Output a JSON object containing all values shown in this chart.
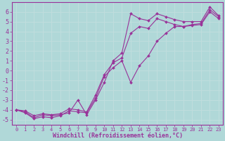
{
  "xlabel": "Windchill (Refroidissement éolien,°C)",
  "background_color": "#b0d8d8",
  "grid_color": "#c8e8e8",
  "line_color": "#993399",
  "xlim": [
    -0.5,
    23.5
  ],
  "ylim": [
    -5.5,
    7.0
  ],
  "xticks": [
    0,
    1,
    2,
    3,
    4,
    5,
    6,
    7,
    8,
    9,
    10,
    11,
    12,
    13,
    14,
    15,
    16,
    17,
    18,
    19,
    20,
    21,
    22,
    23
  ],
  "yticks": [
    -5,
    -4,
    -3,
    -2,
    -1,
    0,
    1,
    2,
    3,
    4,
    5,
    6
  ],
  "series": [
    {
      "x": [
        0,
        1,
        2,
        3,
        4,
        5,
        6,
        7,
        8,
        9,
        10,
        11,
        12,
        13,
        14,
        15,
        16,
        17,
        18,
        19,
        20,
        21,
        22,
        23
      ],
      "y": [
        -4.0,
        -4.2,
        -4.8,
        -4.5,
        -4.6,
        -4.5,
        -4.3,
        -3.0,
        -4.5,
        -3.0,
        -1.2,
        1.0,
        1.8,
        5.8,
        5.3,
        5.1,
        5.8,
        5.5,
        5.2,
        5.0,
        5.0,
        5.0,
        6.5,
        5.6
      ]
    },
    {
      "x": [
        0,
        1,
        2,
        3,
        4,
        5,
        6,
        7,
        8,
        9,
        10,
        11,
        12,
        13,
        14,
        15,
        16,
        17,
        18,
        19,
        20,
        21,
        22,
        23
      ],
      "y": [
        -4.0,
        -4.3,
        -4.9,
        -4.7,
        -4.8,
        -4.6,
        -4.1,
        -4.2,
        -4.3,
        -2.8,
        -0.6,
        0.3,
        1.0,
        -1.2,
        0.5,
        1.5,
        3.0,
        3.8,
        4.5,
        4.5,
        4.7,
        4.8,
        6.2,
        5.5
      ]
    },
    {
      "x": [
        0,
        1,
        2,
        3,
        4,
        5,
        6,
        7,
        8,
        9,
        10,
        11,
        12,
        13,
        14,
        15,
        16,
        17,
        18,
        19,
        20,
        21,
        22,
        23
      ],
      "y": [
        -4.0,
        -4.1,
        -4.6,
        -4.4,
        -4.5,
        -4.4,
        -3.9,
        -4.0,
        -4.2,
        -2.5,
        -0.4,
        0.8,
        1.3,
        3.8,
        4.5,
        4.3,
        5.3,
        5.0,
        4.7,
        4.5,
        4.6,
        4.7,
        6.0,
        5.3
      ]
    }
  ]
}
